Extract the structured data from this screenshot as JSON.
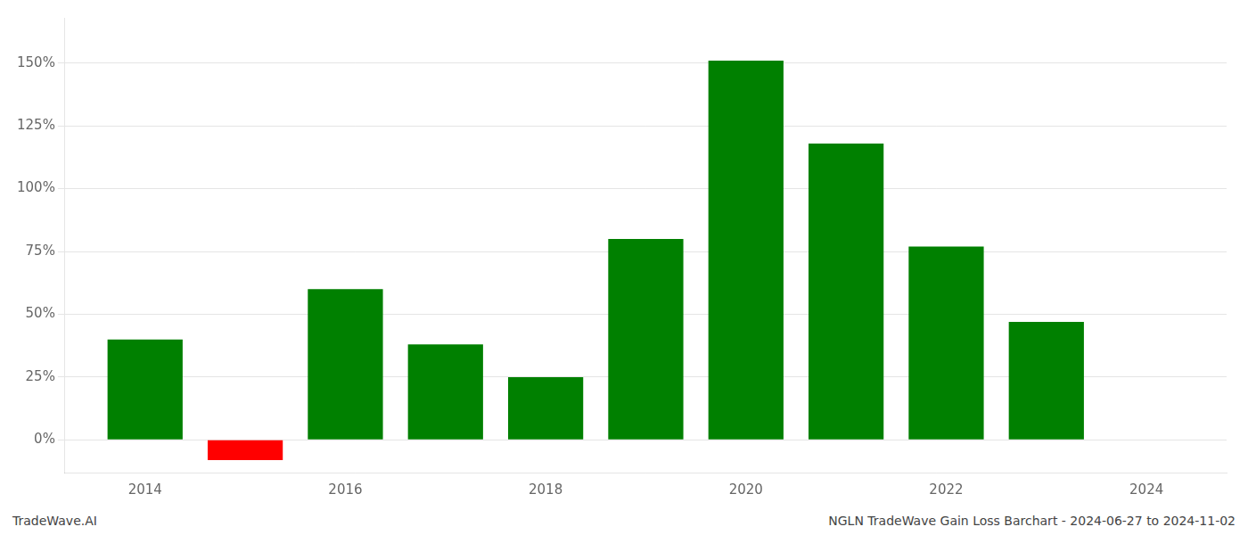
{
  "chart_data": {
    "type": "bar",
    "x": [
      2014,
      2015,
      2016,
      2017,
      2018,
      2019,
      2020,
      2021,
      2022,
      2023,
      2024
    ],
    "values": [
      0.4,
      -0.08,
      0.6,
      0.38,
      0.25,
      0.8,
      1.51,
      1.18,
      0.77,
      0.47,
      null
    ],
    "colors": [
      "#008000",
      "#ff0000",
      "#008000",
      "#008000",
      "#008000",
      "#008000",
      "#008000",
      "#008000",
      "#008000",
      "#008000",
      null
    ],
    "xlim": [
      2013.2,
      2024.8
    ],
    "xticks": [
      2014,
      2016,
      2018,
      2020,
      2022,
      2024
    ],
    "ylim": [
      -0.13,
      1.68
    ],
    "yticks": [
      {
        "value": 0.0,
        "label": "0%"
      },
      {
        "value": 0.25,
        "label": "25%"
      },
      {
        "value": 0.5,
        "label": "50%"
      },
      {
        "value": 0.75,
        "label": "75%"
      },
      {
        "value": 1.0,
        "label": "100%"
      },
      {
        "value": 1.25,
        "label": "125%"
      },
      {
        "value": 1.5,
        "label": "150%"
      }
    ],
    "grid": "y",
    "annotations": [
      "TradeWave.AI",
      "NGLN TradeWave Gain Loss Barchart - 2024-06-27 to 2024-11-02"
    ]
  }
}
